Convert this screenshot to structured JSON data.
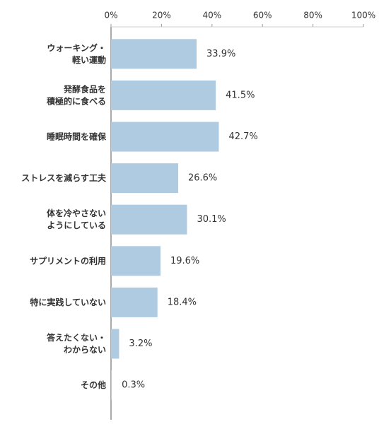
{
  "chart_data": {
    "type": "barh",
    "categories": [
      "ウォーキング・\n軽い運動",
      "発酵食品を\n積極的に食べる",
      "睡眠時間を確保",
      "ストレスを減らす工夫",
      "体を冷やさない\nようにしている",
      "サプリメントの利用",
      "特に実践していない",
      "答えたくない・\nわからない",
      "その他"
    ],
    "values": [
      33.9,
      41.5,
      42.7,
      26.6,
      30.1,
      19.6,
      18.4,
      3.2,
      0.3
    ],
    "value_labels": [
      "33.9%",
      "41.5%",
      "42.7%",
      "26.6%",
      "30.1%",
      "19.6%",
      "18.4%",
      "3.2%",
      "0.3%"
    ],
    "color": "#aecbe2",
    "xlim": [
      0,
      100
    ],
    "xticks": [
      {
        "value": 0,
        "label": "0%"
      },
      {
        "value": 20,
        "label": "20%"
      },
      {
        "value": 40,
        "label": "40%"
      },
      {
        "value": 60,
        "label": "60%"
      },
      {
        "value": 80,
        "label": "80%"
      },
      {
        "value": 100,
        "label": "100%"
      }
    ]
  }
}
